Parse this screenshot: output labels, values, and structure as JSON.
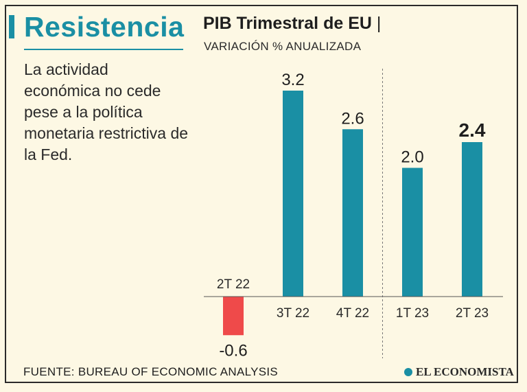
{
  "headline": "Resistencia",
  "description": "La actividad económica no cede pese a la política monetaria restrictiva de la Fed.",
  "source": "FUENTE: BUREAU OF ECONOMIC ANALYSIS",
  "logo": "EL ECONOMISTA",
  "colors": {
    "accent": "#1a8fa4",
    "positive_bar": "#1a8fa4",
    "negative_bar": "#ef4a4a",
    "background": "#fdf8e4"
  },
  "chart_data": {
    "type": "bar",
    "title": "PIB Trimestral de EU",
    "title_separator": "|",
    "subtitle": "VARIACIÓN % ANUALIZADA",
    "categories": [
      "2T 22",
      "3T 22",
      "4T 22",
      "1T 23",
      "2T 23"
    ],
    "values": [
      -0.6,
      3.2,
      2.6,
      2.0,
      2.4
    ],
    "value_labels": [
      "-0.6",
      "3.2",
      "2.6",
      "2.0",
      "2.4"
    ],
    "highlight_index": 4,
    "year_divider_after_index": 2,
    "grid": false,
    "legend": "none"
  }
}
